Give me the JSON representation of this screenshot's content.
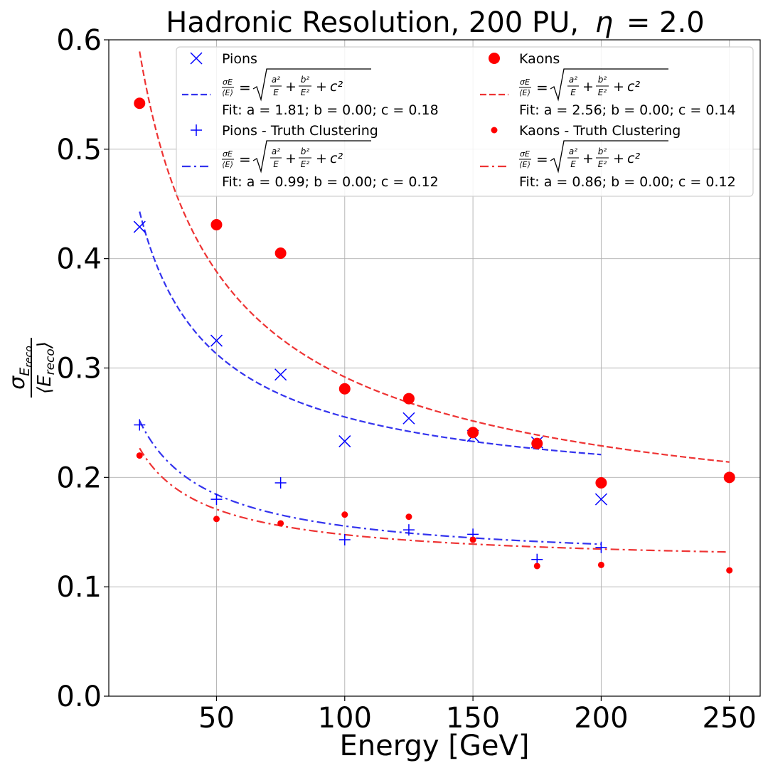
{
  "chart_data": {
    "type": "scatter",
    "title": "Hadronic Resolution, 200 PU, η = 2.0",
    "title_main": "Hadronic Resolution, 200 PU,",
    "title_eta": "η",
    "title_eta_value": "= 2.0",
    "xlabel": "Energy [GeV]",
    "ylabel": "σ_E_reco / ⟨E_reco⟩",
    "ylabel_num": "σ",
    "ylabel_num_sub": "E",
    "ylabel_num_subsub": "reco",
    "ylabel_den": "⟨E",
    "ylabel_den_sub": "reco",
    "ylabel_den_close": "⟩",
    "xlim": [
      8,
      262
    ],
    "ylim": [
      0.0,
      0.6
    ],
    "xticks": [
      50,
      100,
      150,
      200,
      250
    ],
    "yticks": [
      0.0,
      0.1,
      0.2,
      0.3,
      0.4,
      0.5,
      0.6
    ],
    "ytick_labels": [
      "0.0",
      "0.1",
      "0.2",
      "0.3",
      "0.4",
      "0.5",
      "0.6"
    ],
    "grid": true,
    "legend_position": "top",
    "fit_formula": "σE/⟨E⟩ = √(a²/E + b²/E² + c²)",
    "series": [
      {
        "name": "Pions",
        "color": "#0000ff",
        "marker": "x",
        "x": [
          20,
          50,
          75,
          100,
          125,
          150,
          175,
          200
        ],
        "y": [
          0.429,
          0.325,
          0.294,
          0.233,
          0.254,
          0.238,
          0.232,
          0.18
        ],
        "fit": {
          "a": 1.81,
          "b": 0.0,
          "c": 0.18,
          "label": "Fit: a = 1.81; b = 0.00; c = 0.18",
          "linestyle": "dashed",
          "color": "#3333ee",
          "x_range": [
            20,
            200
          ]
        }
      },
      {
        "name": "Kaons",
        "color": "#ff0000",
        "marker": "big-dot",
        "x": [
          20,
          50,
          75,
          100,
          125,
          150,
          175,
          200,
          250
        ],
        "y": [
          0.542,
          0.431,
          0.405,
          0.281,
          0.272,
          0.241,
          0.231,
          0.195,
          0.2
        ],
        "fit": {
          "a": 2.56,
          "b": 0.0,
          "c": 0.14,
          "label": "Fit: a = 2.56; b = 0.00; c = 0.14",
          "linestyle": "dashed",
          "color": "#ee3333",
          "x_range": [
            20,
            250
          ]
        }
      },
      {
        "name": "Pions - Truth Clustering",
        "color": "#0000ff",
        "marker": "plus",
        "x": [
          20,
          50,
          75,
          100,
          125,
          150,
          175,
          200
        ],
        "y": [
          0.248,
          0.18,
          0.195,
          0.143,
          0.152,
          0.148,
          0.125,
          0.136
        ],
        "fit": {
          "a": 0.99,
          "b": 0.0,
          "c": 0.12,
          "label": "Fit: a = 0.99; b = 0.00; c = 0.12",
          "linestyle": "dashdot",
          "color": "#3333ee",
          "x_range": [
            20,
            200
          ]
        }
      },
      {
        "name": "Kaons - Truth Clustering",
        "color": "#ff0000",
        "marker": "small-dot",
        "x": [
          20,
          50,
          75,
          100,
          125,
          150,
          175,
          200,
          250
        ],
        "y": [
          0.22,
          0.162,
          0.158,
          0.166,
          0.164,
          0.143,
          0.119,
          0.12,
          0.115
        ],
        "fit": {
          "a": 0.86,
          "b": 0.0,
          "c": 0.12,
          "label": "Fit: a = 0.86; b = 0.00; c = 0.12",
          "linestyle": "dashdot",
          "color": "#ee3333",
          "x_range": [
            20,
            250
          ]
        }
      }
    ]
  }
}
